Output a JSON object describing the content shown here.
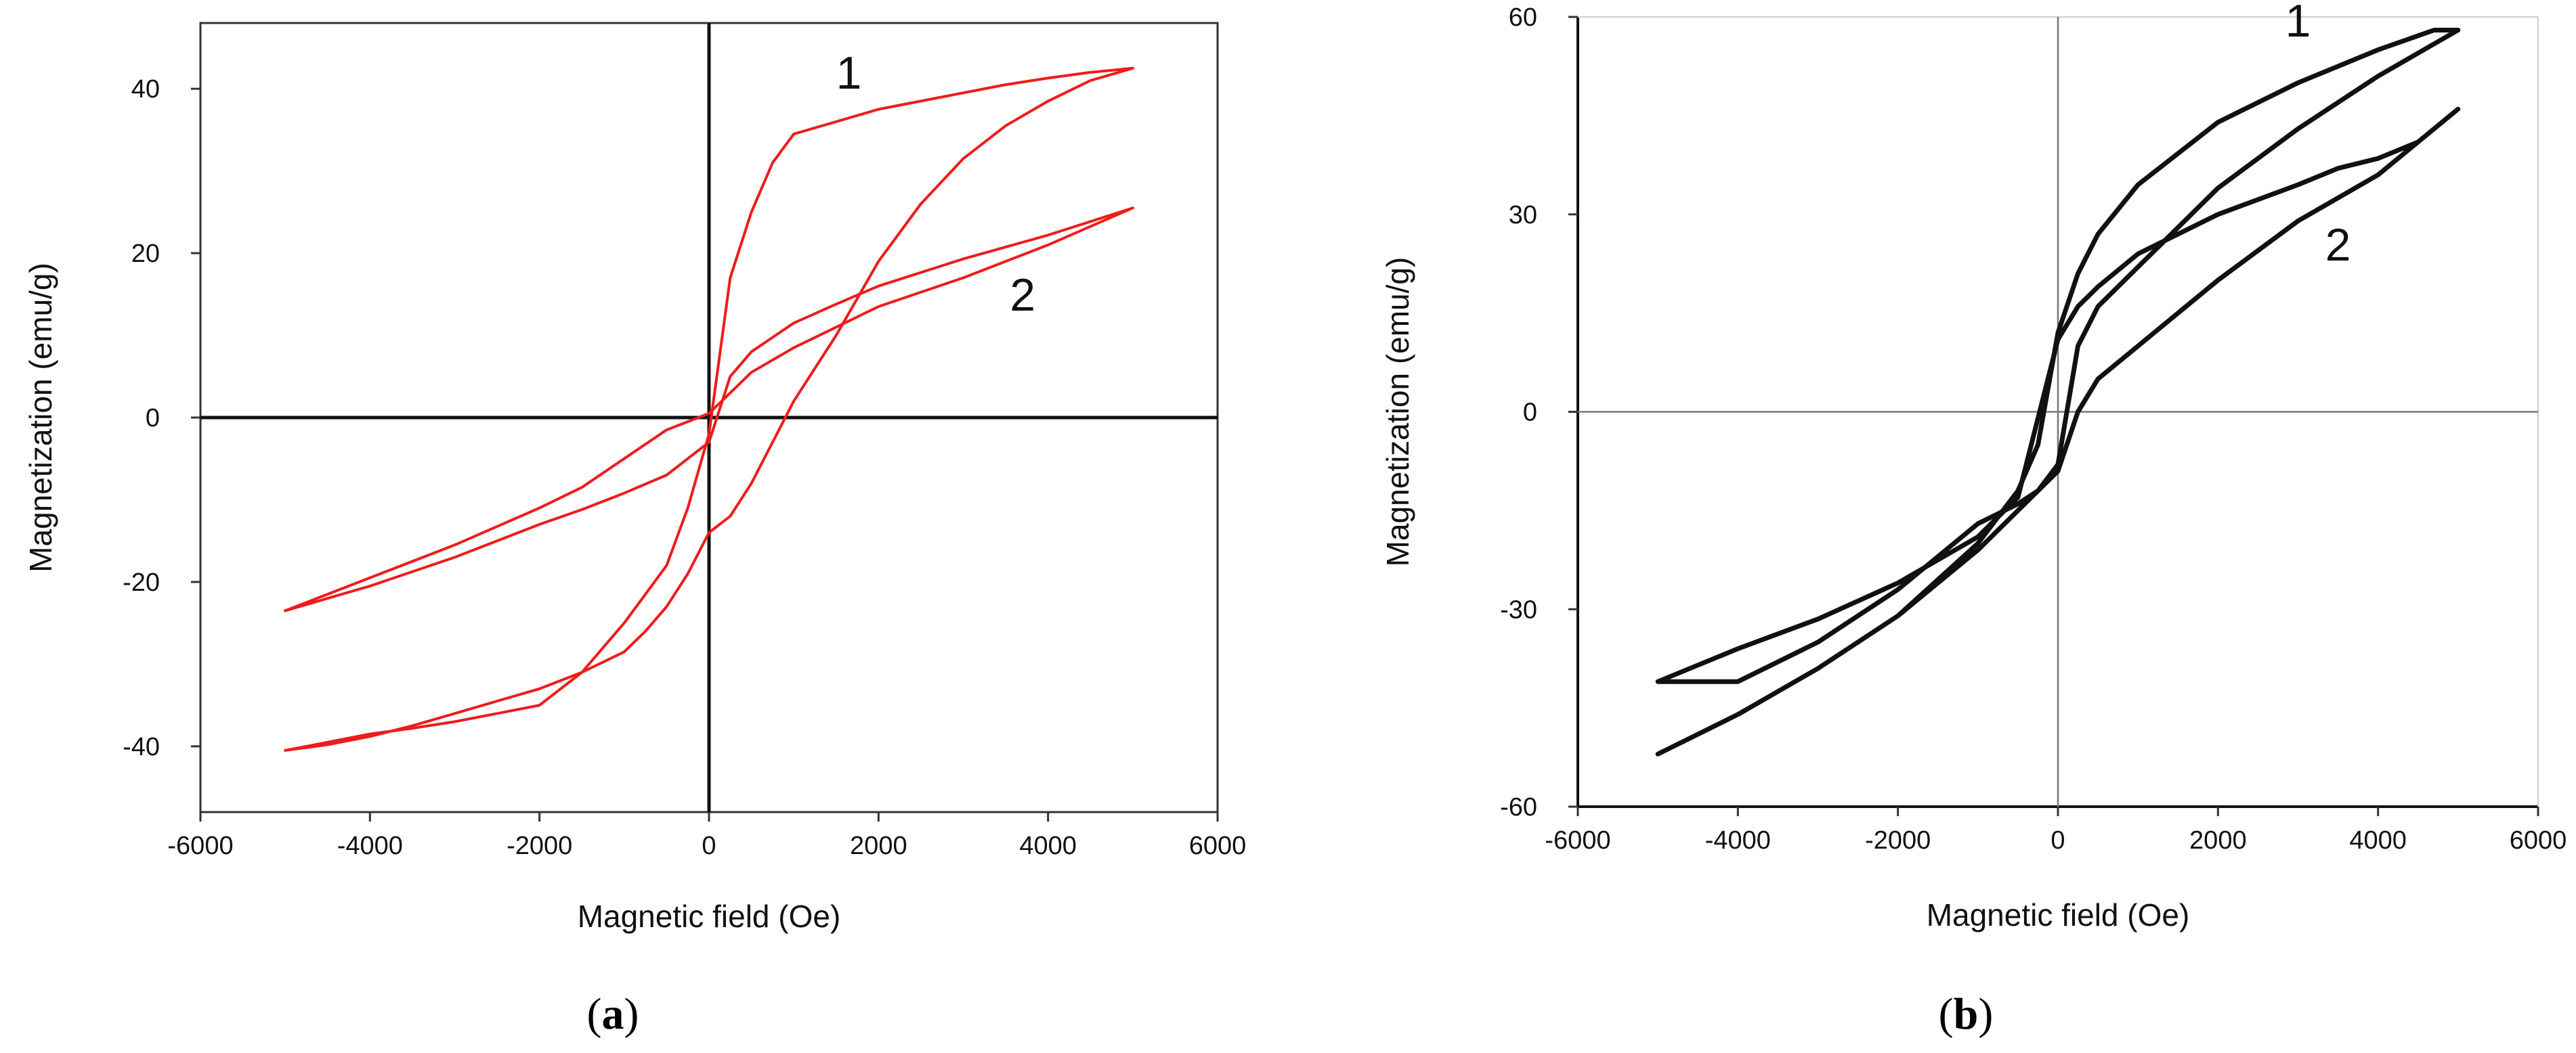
{
  "chart_data": [
    {
      "type": "line",
      "panel_label": "a",
      "xlabel": "Magnetic field (Oe)",
      "ylabel": "Magnetization (emu/g)",
      "xlim": [
        -6000,
        6000
      ],
      "ylim": [
        -48,
        48
      ],
      "xticks": [
        "-6000",
        "-4000",
        "-2000",
        "0",
        "2000",
        "4000",
        "6000"
      ],
      "yticks": [
        "40",
        "20",
        "0",
        "-20",
        "-40"
      ],
      "xtick_values": [
        -6000,
        -4000,
        -2000,
        0,
        2000,
        4000,
        6000
      ],
      "ytick_values": [
        40,
        20,
        0,
        -20,
        -40
      ],
      "grid": false,
      "frame": "box",
      "zero_lines": true,
      "color": "#ee1c1c",
      "series": [
        {
          "name": "1",
          "label_at": [
            1650,
            40
          ],
          "x": [
            -5000,
            -4500,
            -4000,
            -3500,
            -3000,
            -2500,
            -2000,
            -1500,
            -1000,
            -500,
            -250,
            0,
            250,
            500,
            750,
            1000,
            1500,
            2000,
            2500,
            3000,
            3500,
            4000,
            4500,
            5000,
            4500,
            4000,
            3500,
            3000,
            2500,
            2000,
            1500,
            1000,
            500,
            250,
            0,
            -250,
            -500,
            -750,
            -1000,
            -1500,
            -2000,
            -2500,
            -3000,
            -3500,
            -4000,
            -4500,
            -5000
          ],
          "y": [
            -40.5,
            -39.5,
            -38.5,
            -37.8,
            -37,
            -36,
            -35,
            -31,
            -25,
            -18,
            -11,
            -2,
            17,
            25,
            31,
            34.5,
            36,
            37.5,
            38.5,
            39.5,
            40.5,
            41.3,
            42,
            42.5,
            41,
            38.5,
            35.5,
            31.5,
            26,
            19,
            10,
            2,
            -8,
            -12,
            -14,
            -19,
            -23,
            -26,
            -28.5,
            -31,
            -33,
            -34.5,
            -36,
            -37.5,
            -38.8,
            -39.8,
            -40.5
          ]
        },
        {
          "name": "2",
          "label_at": [
            3700,
            13
          ],
          "x": [
            -5000,
            -4000,
            -3000,
            -2000,
            -1500,
            -1000,
            -500,
            0,
            250,
            500,
            1000,
            1500,
            2000,
            3000,
            4000,
            5000,
            4000,
            3000,
            2000,
            1500,
            1000,
            500,
            250,
            0,
            -250,
            -500,
            -1000,
            -1500,
            -2000,
            -3000,
            -4000,
            -5000
          ],
          "y": [
            -23.5,
            -20.5,
            -17,
            -13,
            -11.2,
            -9.2,
            -7,
            -3,
            5,
            8,
            11.5,
            13.8,
            16,
            19.3,
            22.2,
            25.5,
            21,
            17,
            13.5,
            11,
            8.5,
            5.5,
            3,
            0.5,
            -0.5,
            -1.5,
            -5,
            -8.5,
            -11,
            -15.5,
            -19.5,
            -23.5
          ]
        }
      ]
    },
    {
      "type": "line",
      "panel_label": "b",
      "xlabel": "Magnetic field (Oe)",
      "ylabel": "Magnetization (emu/g)",
      "xlim": [
        -6000,
        6000
      ],
      "ylim": [
        -60,
        60
      ],
      "xticks": [
        "-6000",
        "-4000",
        "-2000",
        "0",
        "2000",
        "4000",
        "6000"
      ],
      "yticks": [
        "60",
        "30",
        "0",
        "-30",
        "-60"
      ],
      "xtick_values": [
        -6000,
        -4000,
        -2000,
        0,
        2000,
        4000,
        6000
      ],
      "ytick_values": [
        60,
        30,
        0,
        -30,
        -60
      ],
      "grid": false,
      "frame": "left-bottom",
      "zero_lines": true,
      "color": "#111111",
      "series": [
        {
          "name": "1",
          "label_at": [
            3000,
            57
          ],
          "x": [
            -5000,
            -4000,
            -3000,
            -2000,
            -1000,
            -500,
            -250,
            0,
            250,
            500,
            1000,
            2000,
            3000,
            4000,
            4700,
            5000,
            4000,
            3000,
            2000,
            1000,
            500,
            250,
            0,
            -250,
            -500,
            -1000,
            -2000,
            -3000,
            -4000,
            -5000
          ],
          "y": [
            -52,
            -46,
            -39,
            -31,
            -20,
            -12,
            -5,
            12,
            21,
            27,
            34.5,
            44,
            50,
            55,
            58,
            58,
            51,
            43,
            34,
            22,
            16,
            10,
            -8,
            -12,
            -15,
            -21,
            -31,
            -39,
            -46,
            -52
          ]
        },
        {
          "name": "2",
          "label_at": [
            3500,
            23
          ],
          "x": [
            -5000,
            -4000,
            -3000,
            -2000,
            -1000,
            -500,
            0,
            250,
            500,
            1000,
            2000,
            3000,
            3500,
            4000,
            4500,
            5000,
            4000,
            3000,
            2000,
            1000,
            500,
            250,
            0,
            -250,
            -500,
            -1000,
            -2000,
            -3000,
            -4000,
            -5000
          ],
          "y": [
            -41,
            -36,
            -31.5,
            -26,
            -19,
            -13,
            11,
            16,
            19,
            24,
            30,
            34.5,
            37,
            38.5,
            41,
            46,
            36,
            29,
            20,
            10,
            5,
            0,
            -9,
            -12,
            -14,
            -17,
            -27,
            -35,
            -41,
            -41
          ]
        }
      ]
    }
  ]
}
